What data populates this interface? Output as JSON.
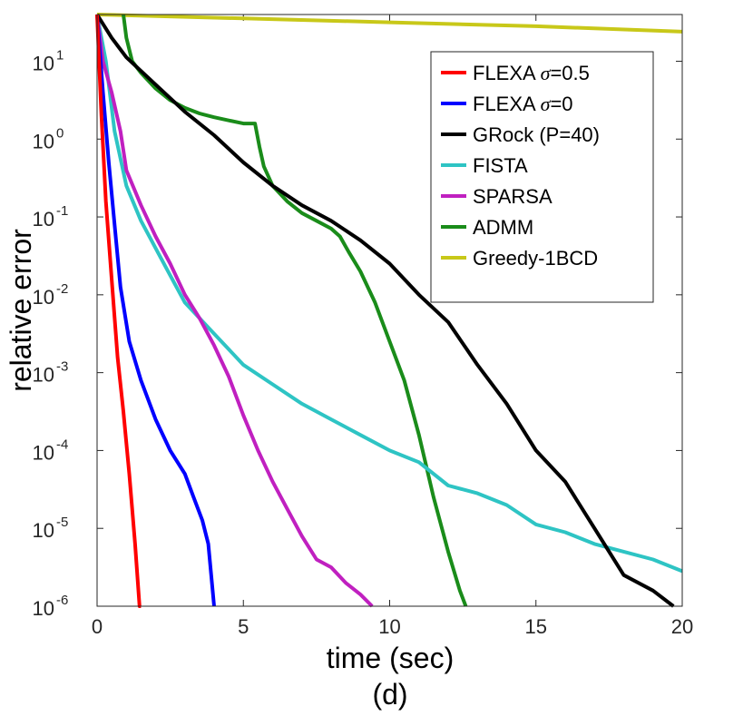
{
  "chart_data": {
    "type": "line",
    "xlabel": "time (sec)",
    "ylabel": "relative error",
    "caption": "(d)",
    "xlim": [
      0,
      20
    ],
    "ylim_log10": [
      -6,
      1.6
    ],
    "y_scale": "log",
    "legend_position": "top-right",
    "x_ticks": [
      {
        "value": 0,
        "label": "0"
      },
      {
        "value": 5,
        "label": "5"
      },
      {
        "value": 10,
        "label": "10"
      },
      {
        "value": 15,
        "label": "15"
      },
      {
        "value": 20,
        "label": "20"
      }
    ],
    "y_ticks": [
      {
        "exp": 1,
        "base": "10",
        "sup": "1"
      },
      {
        "exp": 0,
        "base": "10",
        "sup": "0"
      },
      {
        "exp": -1,
        "base": "10",
        "sup": "-1"
      },
      {
        "exp": -2,
        "base": "10",
        "sup": "-2"
      },
      {
        "exp": -3,
        "base": "10",
        "sup": "-3"
      },
      {
        "exp": -4,
        "base": "10",
        "sup": "-4"
      },
      {
        "exp": -5,
        "base": "10",
        "sup": "-5"
      },
      {
        "exp": -6,
        "base": "10",
        "sup": "-6"
      }
    ],
    "series": [
      {
        "name": "FLEXA σ=0.5",
        "label_main": "FLEXA ",
        "label_sym": "σ",
        "label_rest": "=0.5",
        "color": "#ff0000",
        "x": [
          0.0,
          0.15,
          0.3,
          0.5,
          0.7,
          0.9,
          1.1,
          1.3,
          1.45,
          1.5
        ],
        "y_log10": [
          1.6,
          0.3,
          -0.8,
          -1.8,
          -2.8,
          -3.5,
          -4.3,
          -5.2,
          -6.0,
          -6.0
        ]
      },
      {
        "name": "FLEXA σ=0",
        "label_main": "FLEXA ",
        "label_sym": "σ",
        "label_rest": "=0",
        "color": "#0000ff",
        "x": [
          0.0,
          0.2,
          0.4,
          0.6,
          0.8,
          1.1,
          1.5,
          2.0,
          2.5,
          3.0,
          3.3,
          3.6,
          3.8,
          3.95,
          4.0
        ],
        "y_log10": [
          1.6,
          0.6,
          -0.3,
          -1.1,
          -1.9,
          -2.6,
          -3.1,
          -3.6,
          -4.0,
          -4.3,
          -4.6,
          -4.9,
          -5.2,
          -5.8,
          -6.0
        ]
      },
      {
        "name": "GRock (P=40)",
        "label_main": "GRock (P=40)",
        "label_sym": "",
        "label_rest": "",
        "color": "#000000",
        "x": [
          0.0,
          0.5,
          1.0,
          2.0,
          3.0,
          4.0,
          5.0,
          6.0,
          7.0,
          8.0,
          9.0,
          10.0,
          11.0,
          12.0,
          13.0,
          14.0,
          15.0,
          16.0,
          17.0,
          18.0,
          19.0,
          19.7
        ],
        "y_log10": [
          1.6,
          1.3,
          1.05,
          0.7,
          0.35,
          0.05,
          -0.3,
          -0.6,
          -0.85,
          -1.05,
          -1.3,
          -1.6,
          -2.0,
          -2.35,
          -2.9,
          -3.4,
          -4.0,
          -4.4,
          -5.0,
          -5.6,
          -5.8,
          -6.0
        ]
      },
      {
        "name": "FISTA",
        "label_main": "FISTA",
        "label_sym": "",
        "label_rest": "",
        "color": "#2ec4c4",
        "x": [
          0.0,
          0.3,
          0.6,
          1.0,
          1.5,
          2.0,
          2.5,
          3.0,
          4.0,
          5.0,
          6.0,
          7.0,
          8.0,
          9.0,
          10.0,
          11.0,
          12.0,
          13.0,
          14.0,
          15.0,
          16.0,
          17.0,
          18.0,
          19.0,
          20.0
        ],
        "y_log10": [
          1.6,
          1.0,
          0.1,
          -0.6,
          -1.05,
          -1.4,
          -1.75,
          -2.1,
          -2.5,
          -2.9,
          -3.15,
          -3.4,
          -3.6,
          -3.8,
          -4.0,
          -4.15,
          -4.45,
          -4.55,
          -4.7,
          -4.95,
          -5.05,
          -5.2,
          -5.3,
          -5.4,
          -5.55
        ]
      },
      {
        "name": "SPARSA",
        "label_main": "SPARSA",
        "label_sym": "",
        "label_rest": "",
        "color": "#c020c0",
        "x": [
          0.0,
          0.2,
          0.5,
          0.8,
          1.0,
          1.5,
          2.0,
          2.5,
          3.0,
          3.5,
          4.0,
          4.5,
          5.0,
          5.5,
          6.0,
          6.5,
          7.0,
          7.5,
          8.0,
          8.5,
          9.0,
          9.4
        ],
        "y_log10": [
          1.6,
          1.0,
          0.6,
          0.1,
          -0.4,
          -0.85,
          -1.25,
          -1.6,
          -2.0,
          -2.3,
          -2.65,
          -3.05,
          -3.55,
          -4.0,
          -4.4,
          -4.75,
          -5.1,
          -5.4,
          -5.5,
          -5.7,
          -5.85,
          -6.0
        ]
      },
      {
        "name": "ADMM",
        "label_main": "ADMM",
        "label_sym": "",
        "label_rest": "",
        "color": "#1a8c1a",
        "x": [
          0.9,
          1.0,
          1.2,
          1.5,
          2.0,
          2.5,
          3.0,
          3.5,
          4.0,
          4.5,
          5.0,
          5.4,
          5.55,
          5.7,
          6.0,
          6.5,
          7.0,
          7.5,
          8.0,
          8.3,
          8.6,
          9.0,
          9.5,
          10.0,
          10.5,
          11.0,
          11.5,
          12.0,
          12.4,
          12.6
        ],
        "y_log10": [
          1.6,
          1.3,
          1.0,
          0.85,
          0.65,
          0.5,
          0.4,
          0.33,
          0.28,
          0.24,
          0.2,
          0.2,
          -0.1,
          -0.35,
          -0.6,
          -0.8,
          -0.95,
          -1.05,
          -1.15,
          -1.25,
          -1.45,
          -1.7,
          -2.1,
          -2.6,
          -3.1,
          -3.8,
          -4.6,
          -5.3,
          -5.8,
          -6.0
        ]
      },
      {
        "name": "Greedy-1BCD",
        "label_main": "Greedy-1BCD",
        "label_sym": "",
        "label_rest": "",
        "color": "#c8c819",
        "x": [
          0.0,
          5.0,
          10.0,
          15.0,
          20.0
        ],
        "y_log10": [
          1.6,
          1.55,
          1.5,
          1.45,
          1.38
        ]
      }
    ]
  }
}
